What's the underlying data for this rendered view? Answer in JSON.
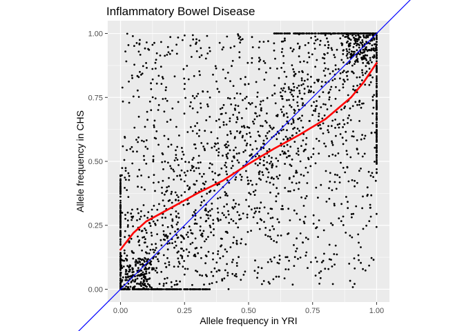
{
  "chart_data": {
    "type": "scatter",
    "title": "Inflammatory Bowel Disease",
    "xlabel": "Allele frequency in YRI",
    "ylabel": "Allele frequency in CHS",
    "xlim": [
      -0.05,
      1.05
    ],
    "ylim": [
      -0.05,
      1.05
    ],
    "x_ticks": [
      "0.00",
      "0.25",
      "0.50",
      "0.75",
      "1.00"
    ],
    "y_ticks": [
      "0.00",
      "0.25",
      "0.50",
      "0.75",
      "1.00"
    ],
    "grid": true,
    "legend": "none",
    "point_count": 2600,
    "point_color": "#000000",
    "panel_color": "#ebebeb",
    "reference_line": {
      "description": "identity line y = x",
      "color": "#0000ff",
      "slope": 1,
      "intercept": 0
    },
    "smooth_fit": {
      "color": "#ff0000",
      "x": [
        0.0,
        0.05,
        0.1,
        0.2,
        0.3,
        0.4,
        0.5,
        0.6,
        0.7,
        0.8,
        0.9,
        0.95,
        1.0
      ],
      "y": [
        0.155,
        0.22,
        0.265,
        0.32,
        0.375,
        0.425,
        0.49,
        0.55,
        0.605,
        0.665,
        0.75,
        0.81,
        0.885
      ]
    }
  }
}
